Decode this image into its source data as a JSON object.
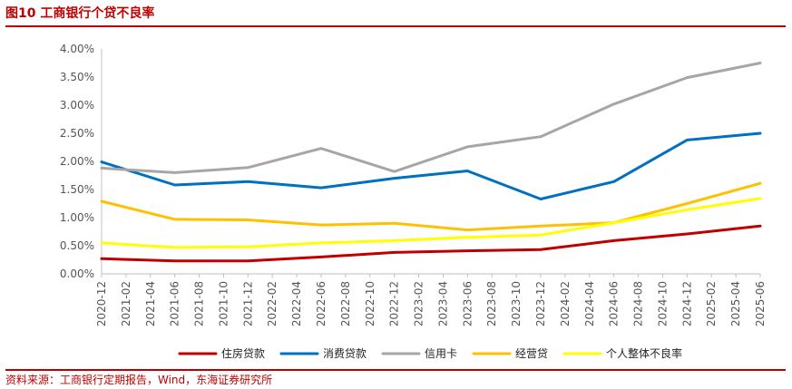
{
  "header": {
    "title": "图10  工商银行个贷不良率"
  },
  "footer": {
    "source": "资料来源：工商银行定期报告，Wind，东海证券研究所"
  },
  "chart_data": {
    "type": "line",
    "title": "工商银行个贷不良率",
    "xlabel": "",
    "ylabel": "",
    "ylim": [
      0,
      4.0
    ],
    "ytick_step": 0.5,
    "ytick_labels": [
      "0.00%",
      "0.50%",
      "1.00%",
      "1.50%",
      "2.00%",
      "2.50%",
      "3.00%",
      "3.50%",
      "4.00%"
    ],
    "legend_position": "bottom",
    "categories": [
      "2020-12",
      "2021-02",
      "2021-04",
      "2021-06",
      "2021-08",
      "2021-10",
      "2021-12",
      "2022-02",
      "2022-04",
      "2022-06",
      "2022-08",
      "2022-10",
      "2022-12",
      "2023-02",
      "2023-04",
      "2023-06",
      "2023-08",
      "2023-10",
      "2023-12",
      "2024-02",
      "2024-04",
      "2024-06",
      "2024-08",
      "2024-10",
      "2024-12",
      "2025-02",
      "2025-04",
      "2025-06"
    ],
    "series": [
      {
        "name": "住房贷款",
        "color": "#c00000",
        "x": [
          "2020-12",
          "2021-06",
          "2021-12",
          "2022-06",
          "2022-12",
          "2023-06",
          "2023-12",
          "2024-06",
          "2024-12",
          "2025-06"
        ],
        "values": [
          0.27,
          0.23,
          0.23,
          0.3,
          0.38,
          0.41,
          0.43,
          0.59,
          0.71,
          0.85
        ]
      },
      {
        "name": "消费贷款",
        "color": "#0070c0",
        "x": [
          "2020-12",
          "2021-06",
          "2021-12",
          "2022-06",
          "2022-12",
          "2023-06",
          "2023-12",
          "2024-06",
          "2024-12",
          "2025-06"
        ],
        "values": [
          1.99,
          1.58,
          1.64,
          1.53,
          1.7,
          1.83,
          1.33,
          1.64,
          2.38,
          2.5
        ]
      },
      {
        "name": "信用卡",
        "color": "#a6a6a6",
        "x": [
          "2020-12",
          "2021-06",
          "2021-12",
          "2022-06",
          "2022-12",
          "2023-06",
          "2023-12",
          "2024-06",
          "2024-12",
          "2025-06"
        ],
        "values": [
          1.88,
          1.8,
          1.89,
          2.23,
          1.82,
          2.26,
          2.44,
          3.02,
          3.49,
          3.75
        ]
      },
      {
        "name": "经营贷",
        "color": "#ffc000",
        "x": [
          "2020-12",
          "2021-06",
          "2021-12",
          "2022-06",
          "2022-12",
          "2023-06",
          "2023-12",
          "2024-06",
          "2024-12",
          "2025-06"
        ],
        "values": [
          1.29,
          0.97,
          0.96,
          0.87,
          0.9,
          0.78,
          0.85,
          0.91,
          1.25,
          1.61
        ]
      },
      {
        "name": "个人整体不良率",
        "color": "#ffff00",
        "x": [
          "2020-12",
          "2021-06",
          "2021-12",
          "2022-06",
          "2022-12",
          "2023-06",
          "2023-12",
          "2024-06",
          "2024-12",
          "2025-06"
        ],
        "values": [
          0.55,
          0.47,
          0.48,
          0.55,
          0.59,
          0.65,
          0.69,
          0.91,
          1.14,
          1.34
        ]
      }
    ]
  }
}
